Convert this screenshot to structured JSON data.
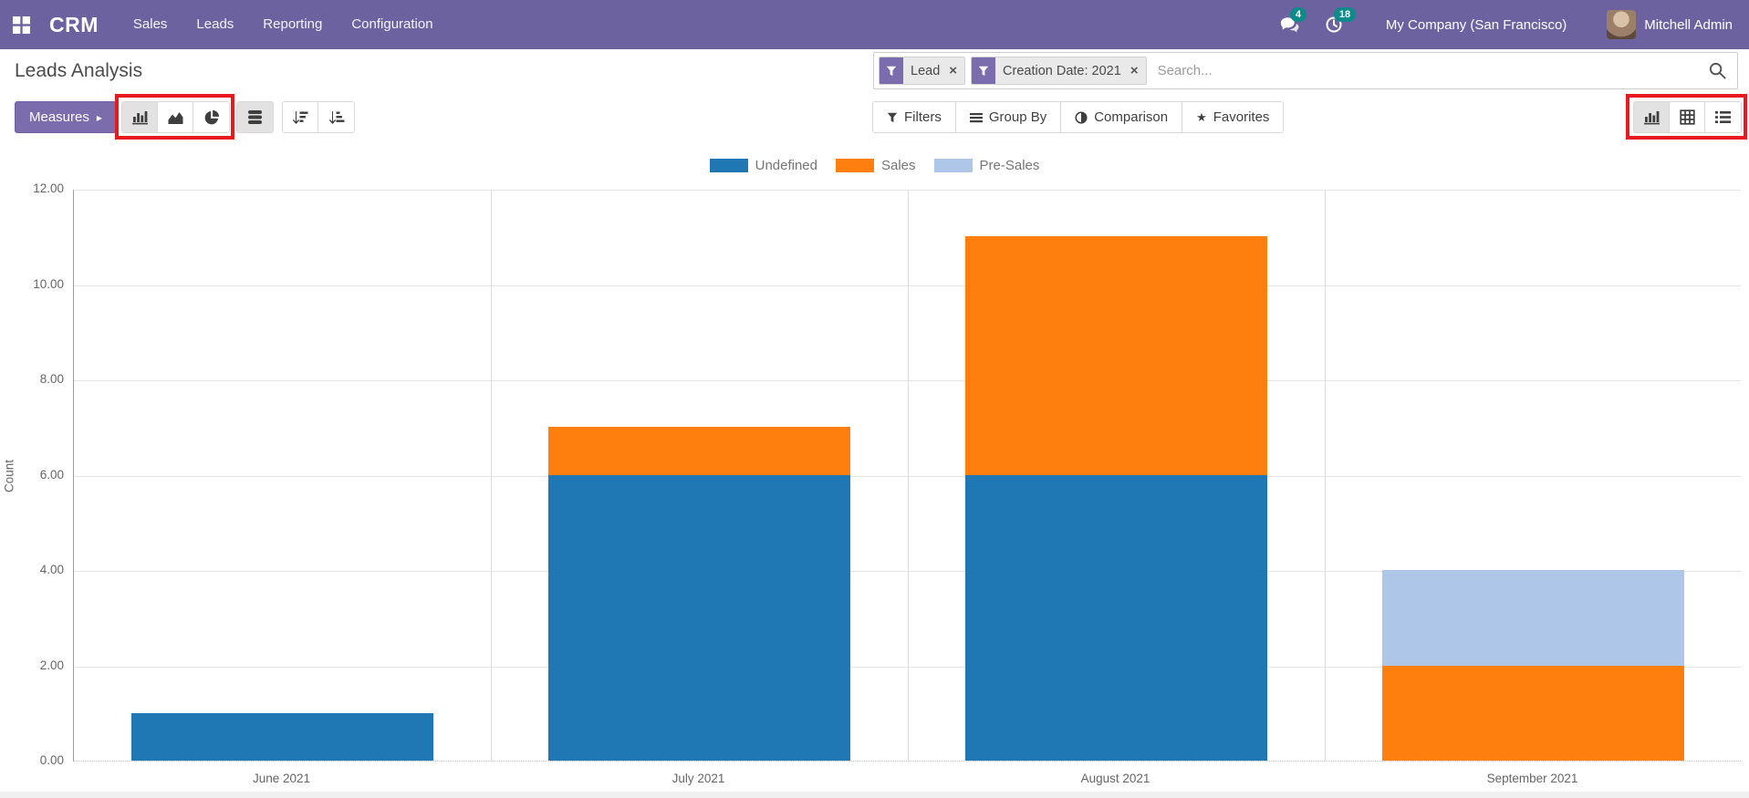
{
  "navbar": {
    "app_name": "CRM",
    "menus": [
      "Sales",
      "Leads",
      "Reporting",
      "Configuration"
    ],
    "messages_badge": "4",
    "activities_badge": "18",
    "company": "My Company (San Francisco)",
    "user": "Mitchell Admin"
  },
  "page": {
    "title": "Leads Analysis"
  },
  "search": {
    "facets": [
      "Lead",
      "Creation Date: 2021"
    ],
    "placeholder": "Search..."
  },
  "controls": {
    "measures": "Measures",
    "filters": "Filters",
    "group_by": "Group By",
    "comparison": "Comparison",
    "favorites": "Favorites"
  },
  "chart_data": {
    "type": "bar",
    "stacked": true,
    "title": "",
    "xlabel": "",
    "ylabel": "Count",
    "ylim": [
      0,
      12
    ],
    "ytick_step": 2,
    "grid": true,
    "legend_position": "top",
    "categories": [
      "June 2021",
      "July 2021",
      "August 2021",
      "September 2021"
    ],
    "series": [
      {
        "name": "Undefined",
        "color": "#1f77b4",
        "values": [
          1,
          6,
          6,
          0
        ]
      },
      {
        "name": "Sales",
        "color": "#ff7f0e",
        "values": [
          0,
          1,
          5,
          2
        ]
      },
      {
        "name": "Pre-Sales",
        "color": "#aec7e8",
        "textured": true,
        "values": [
          0,
          0,
          0,
          2
        ]
      }
    ]
  },
  "colors": {
    "navbar_bg": "#6d62a0",
    "primary_button": "#7b6cae",
    "badge": "#0d8a8a",
    "highlight_box": "#e8191f",
    "active_button_bg": "#e2e2e2"
  }
}
